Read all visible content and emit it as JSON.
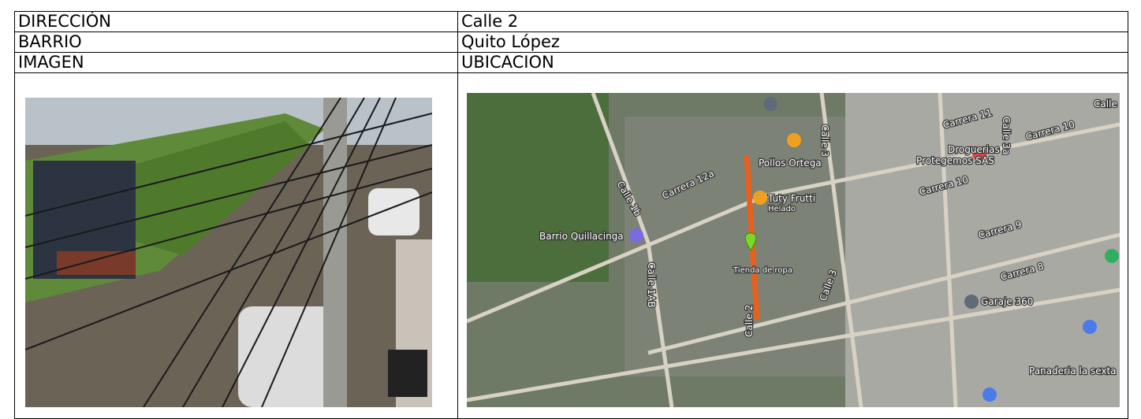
{
  "table": {
    "rows": [
      [
        "DIRECCIÓN",
        "Calle 2"
      ],
      [
        "BARRIO",
        "Quito López"
      ],
      [
        "IMAGEN",
        "UBICACION"
      ]
    ]
  },
  "map": {
    "labels": [
      "Calle 2",
      "Calle 3",
      "Calle 3",
      "Carrera 12a",
      "Calle 1b",
      "Calle 1AB",
      "Pollos Ortega",
      "Tuty Frutti",
      "Helado",
      "Barrio Quillacinga",
      "Garaje 360",
      "Panaderia la sexta",
      "Droguerias",
      "Protegemos SAS",
      "Carrera 11",
      "Carrera 10",
      "Carrera 10",
      "Carrera 9",
      "Carrera 8",
      "Calle 3a",
      "Tienda de ropa",
      "Calle"
    ]
  }
}
